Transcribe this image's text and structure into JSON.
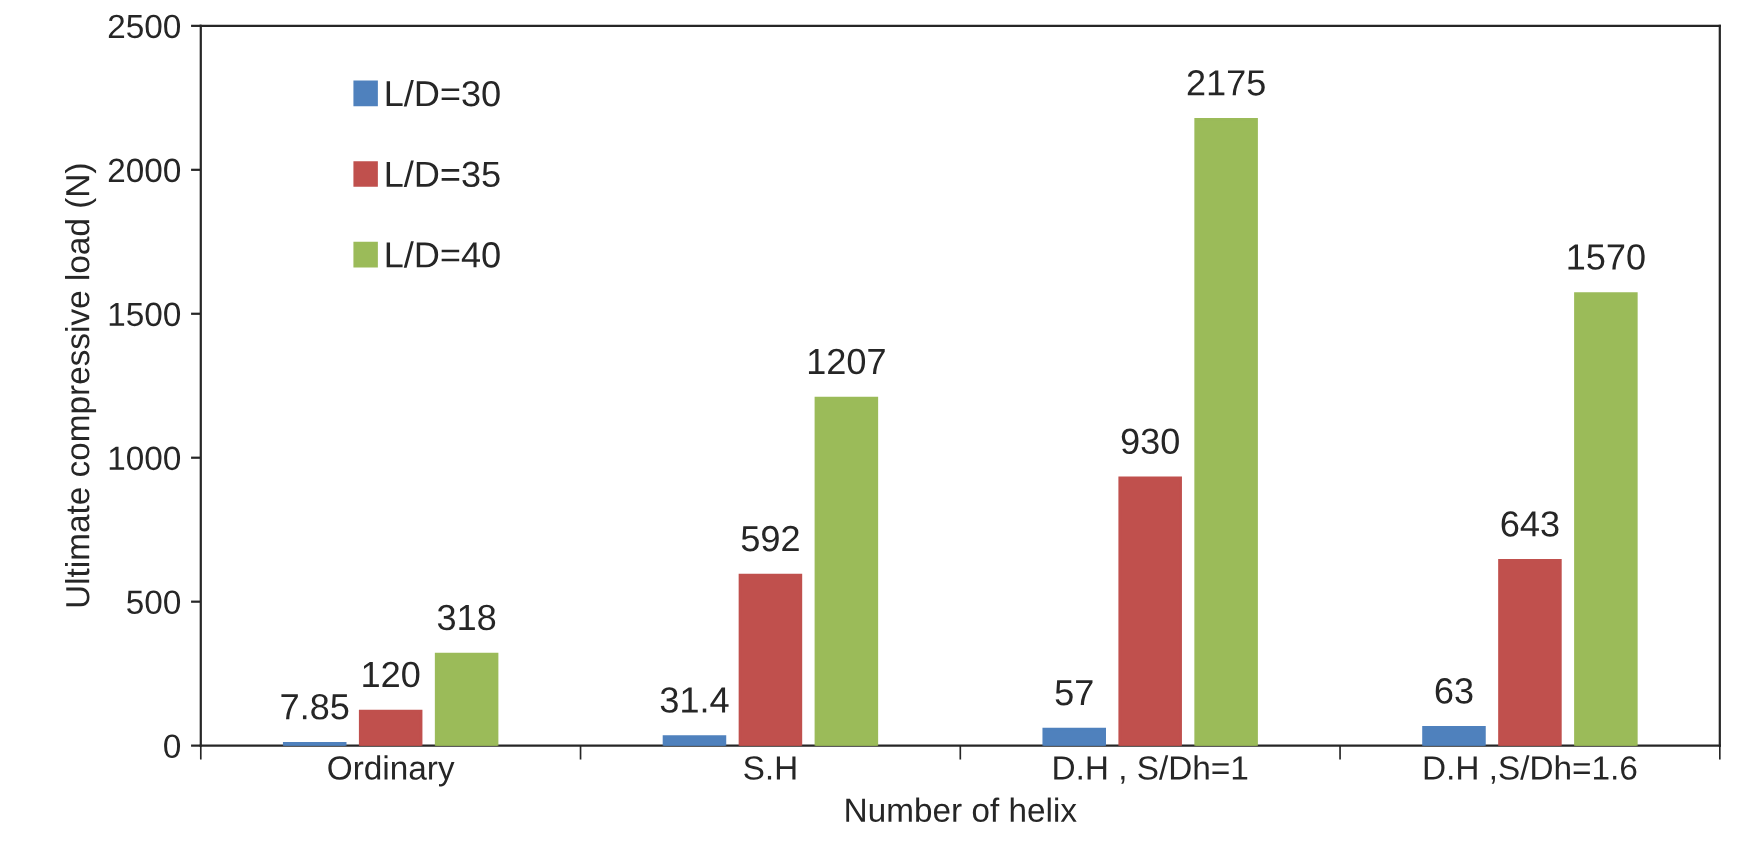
{
  "chart_data": {
    "type": "bar",
    "xlabel": "Number of helix",
    "ylabel": "Ultimate compressive load (N)",
    "categories": [
      "Ordinary",
      "S.H",
      "D.H , S/Dh=1",
      "D.H ,S/Dh=1.6"
    ],
    "series": [
      {
        "name": "L/D=30",
        "color": "#4f81bd",
        "values": [
          7.85,
          31.4,
          57,
          63
        ]
      },
      {
        "name": "L/D=35",
        "color": "#c0504d",
        "values": [
          120,
          592,
          930,
          643
        ]
      },
      {
        "name": "L/D=40",
        "color": "#9bbb59",
        "values": [
          318,
          1207,
          2175,
          1570
        ]
      }
    ],
    "ylim": [
      0,
      2500
    ],
    "yticks": [
      0,
      500,
      1000,
      1500,
      2000,
      2500
    ],
    "data_labels": true,
    "legend": "top left",
    "grid": false
  }
}
